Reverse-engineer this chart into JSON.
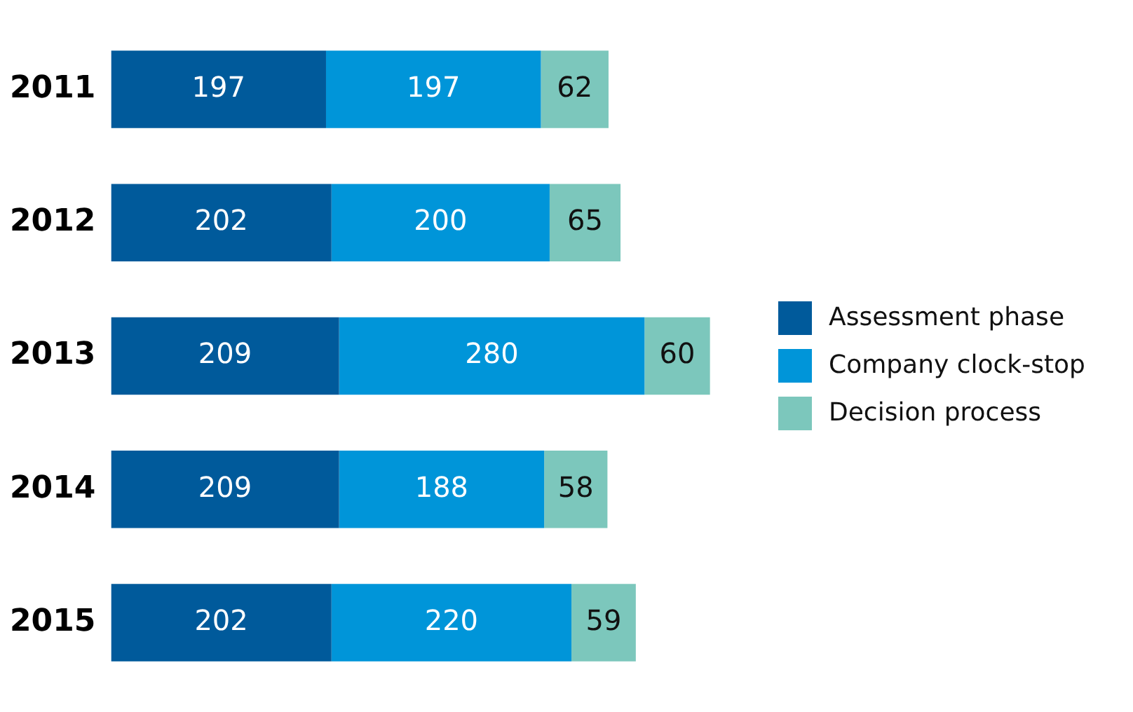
{
  "chart_data": {
    "type": "bar",
    "orientation": "horizontal",
    "stacked": true,
    "categories": [
      "2011",
      "2012",
      "2013",
      "2014",
      "2015"
    ],
    "series": [
      {
        "name": "Assessment phase",
        "color": "#005a9b",
        "values": [
          197,
          202,
          209,
          209,
          202
        ]
      },
      {
        "name": "Company clock-stop",
        "color": "#0095d9",
        "values": [
          197,
          200,
          280,
          188,
          220
        ]
      },
      {
        "name": "Decision process",
        "color": "#7cc7bc",
        "values": [
          62,
          65,
          60,
          58,
          59
        ]
      }
    ],
    "data_labels": true,
    "legend": "right",
    "tick_labels": "y"
  }
}
